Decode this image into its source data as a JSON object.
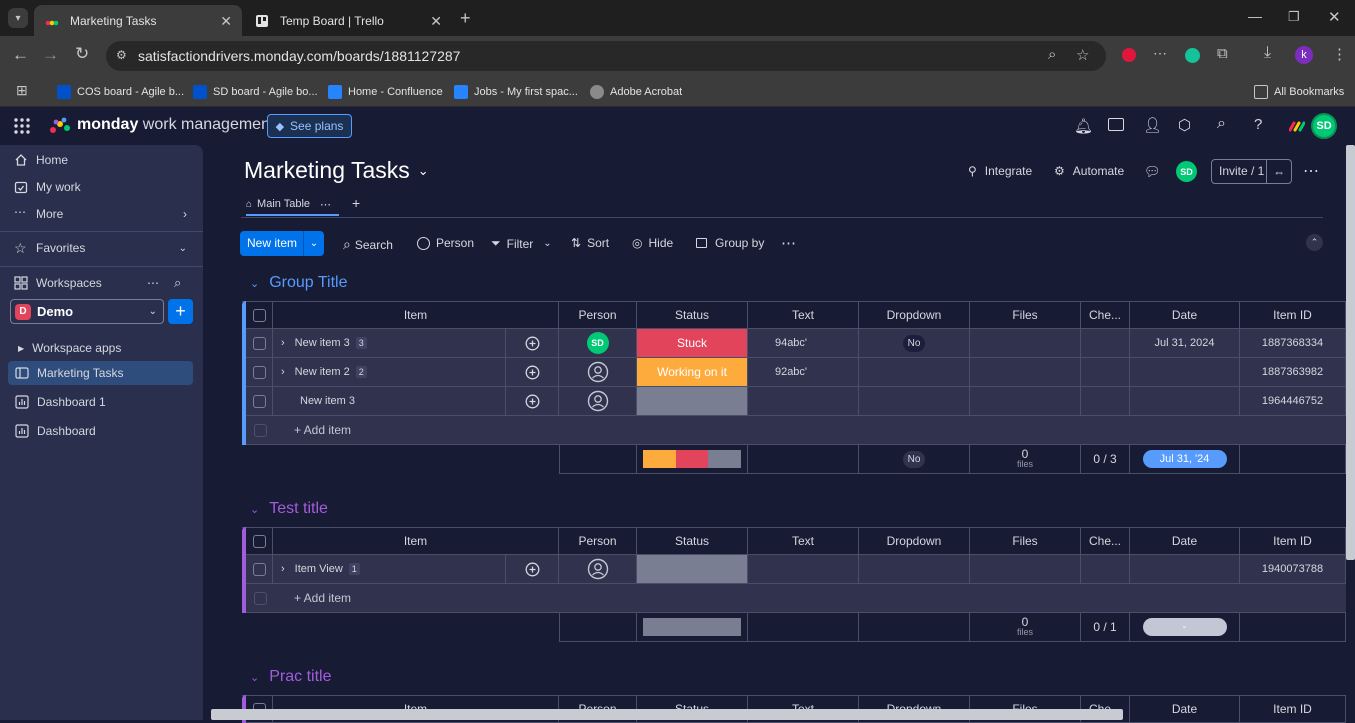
{
  "browser": {
    "tabs": [
      {
        "title": "Marketing Tasks",
        "active": true
      },
      {
        "title": "Temp Board | Trello",
        "active": false
      }
    ],
    "url": "satisfactiondrivers.monday.com/boards/1881127287",
    "profile_initial": "k",
    "bookmarks": [
      {
        "label": "COS board - Agile b..."
      },
      {
        "label": "SD board - Agile bo..."
      },
      {
        "label": "Home - Confluence"
      },
      {
        "label": "Jobs - My first spac..."
      },
      {
        "label": "Adobe Acrobat"
      }
    ],
    "all_bookmarks": "All Bookmarks"
  },
  "app": {
    "brand": "monday",
    "brand_suffix": "work management",
    "see_plans": "See plans",
    "user_initials": "SD"
  },
  "sidebar": {
    "nav": [
      {
        "label": "Home"
      },
      {
        "label": "My work"
      },
      {
        "label": "More"
      }
    ],
    "favorites": "Favorites",
    "workspaces": "Workspaces",
    "workspace_badge": "D",
    "workspace_name": "Demo",
    "items": [
      {
        "label": "Workspace apps"
      },
      {
        "label": "Marketing Tasks"
      },
      {
        "label": "Dashboard 1"
      },
      {
        "label": "Dashboard"
      }
    ]
  },
  "board": {
    "title": "Marketing Tasks",
    "integrate": "Integrate",
    "automate": "Automate",
    "invite": "Invite / 1",
    "tab_main": "Main Table",
    "toolbar": {
      "new_item": "New item",
      "search": "Search",
      "person": "Person",
      "filter": "Filter",
      "sort": "Sort",
      "hide": "Hide",
      "group_by": "Group by"
    },
    "columns": [
      "Item",
      "Person",
      "Status",
      "Text",
      "Dropdown",
      "Files",
      "Che...",
      "Date",
      "Item ID"
    ],
    "add_item": "+ Add item",
    "groups": [
      {
        "title": "Group Title",
        "color": "#579bfc",
        "rows": [
          {
            "name": "New item 3",
            "sub": "3",
            "person": "SD",
            "status": "Stuck",
            "status_color": "#e2445c",
            "text": "94abc'",
            "dropdown": "No",
            "date": "Jul 31, 2024",
            "id": "1887368334"
          },
          {
            "name": "New item 2",
            "sub": "2",
            "person": "",
            "status": "Working on it",
            "status_color": "#fdab3d",
            "text": "92abc'",
            "dropdown": "",
            "date": "",
            "id": "1887363982"
          },
          {
            "name": "New item 3",
            "sub": "",
            "person": "",
            "status": "",
            "status_color": "#797e93",
            "text": "",
            "dropdown": "",
            "date": "",
            "id": "1964446752"
          }
        ],
        "summary": {
          "dropdown": "No",
          "files_count": "0",
          "files_label": "files",
          "check": "0 / 3",
          "date": "Jul 31, '24"
        }
      },
      {
        "title": "Test title",
        "color": "#a25ddc",
        "rows": [
          {
            "name": "Item View",
            "sub": "1",
            "person": "",
            "status": "",
            "status_color": "#797e93",
            "text": "",
            "dropdown": "",
            "date": "",
            "id": "1940073788"
          }
        ],
        "summary": {
          "dropdown": "",
          "files_count": "0",
          "files_label": "files",
          "check": "0 / 1",
          "date": "-"
        }
      },
      {
        "title": "Prac title",
        "color": "#a25ddc",
        "rows": [],
        "summary": null
      }
    ]
  }
}
